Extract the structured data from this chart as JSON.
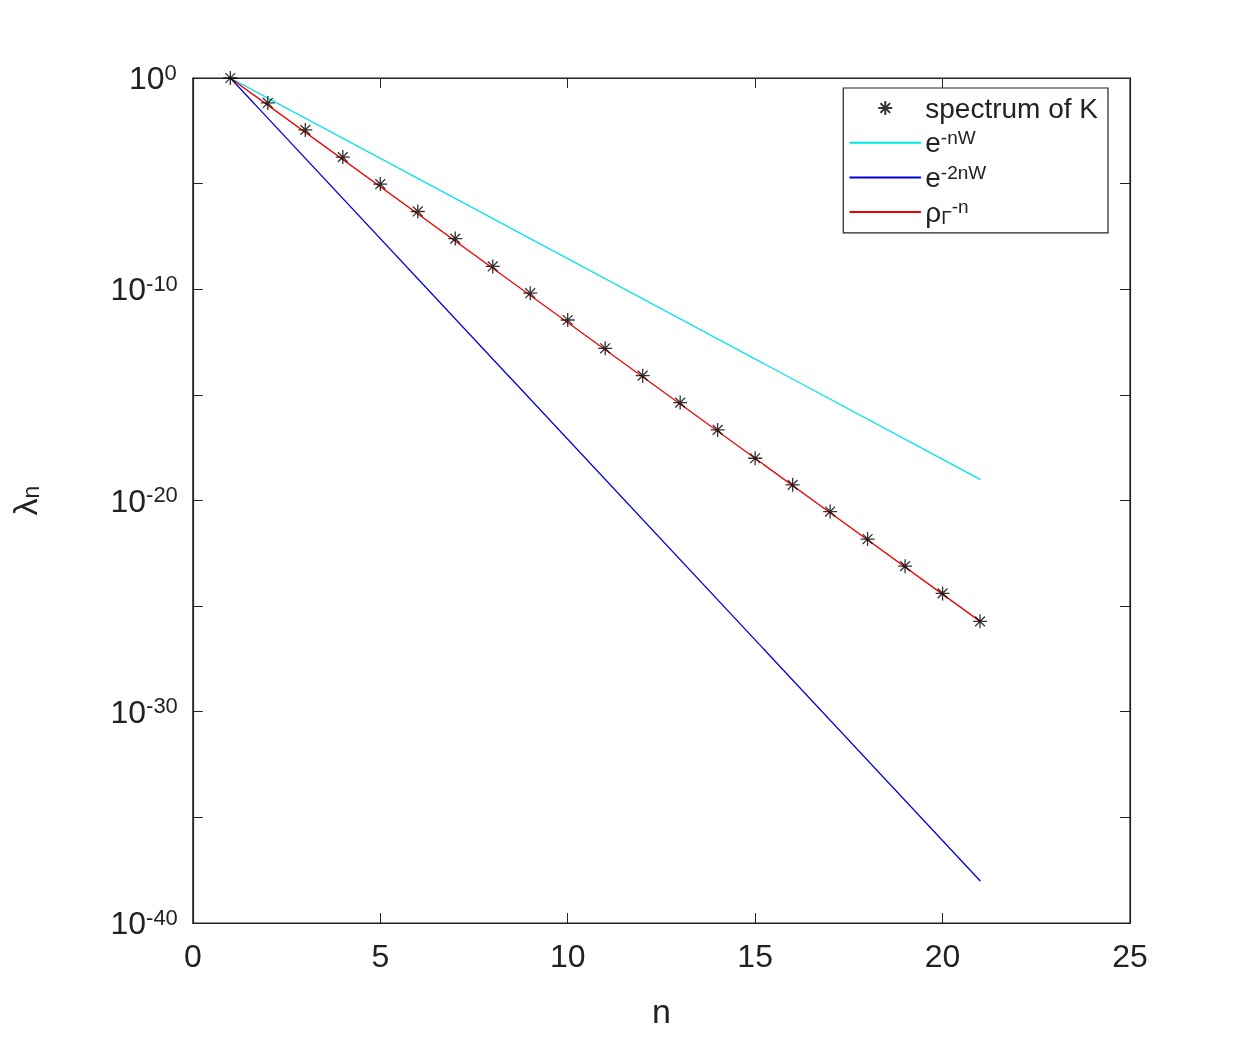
{
  "chart_data": {
    "type": "scatter",
    "xlabel": "n",
    "ylabel": "λ$_{n}$",
    "log": true,
    "grid": false,
    "legend": "top right",
    "xlim": [
      0,
      25
    ],
    "xticks": [
      0,
      5,
      10,
      15,
      20,
      25
    ],
    "ylim": [
      1e-40,
      1
    ],
    "yticks": [
      {
        "value": 1,
        "label": "10$^{0}$"
      },
      {
        "value": 1e-05,
        "label": null
      },
      {
        "value": 1e-10,
        "label": "10$^{-10}$"
      },
      {
        "value": 1e-15,
        "label": null
      },
      {
        "value": 1e-20,
        "label": "10$^{-20}$"
      },
      {
        "value": 1e-25,
        "label": null
      },
      {
        "value": 1e-30,
        "label": "10$^{-30}$"
      },
      {
        "value": 1e-35,
        "label": null
      },
      {
        "value": 1e-40,
        "label": "10$^{-40}$"
      }
    ],
    "series": [
      {
        "name": "spectrum of K",
        "color": "#000000",
        "marker": "cross",
        "x": [
          1,
          2,
          3,
          4,
          5,
          6,
          7,
          8,
          9,
          10,
          11,
          12,
          13,
          14,
          15,
          16,
          17,
          18,
          19,
          20,
          21
        ],
        "values": [
          1,
          0.066,
          0.0035,
          0.00018,
          9.5e-06,
          4.8e-07,
          2.5e-08,
          1.2e-09,
          6.5e-11,
          3.5e-12,
          1.6e-13,
          8.1e-15,
          4.3e-16,
          2.2e-17,
          1e-18,
          5.5e-20,
          3e-21,
          1.5e-22,
          7.8e-24,
          4e-25,
          1.9e-26
        ]
      },
      {
        "name": "e$^{-nW}$",
        "type": "line",
        "color": "#00e5e5",
        "marker": "none",
        "x": [
          1,
          21
        ],
        "values": [
          1,
          1e-19
        ]
      },
      {
        "name": "e$^{-2nW}$",
        "type": "line",
        "color": "#0000e0",
        "marker": "none",
        "x": [
          1,
          21
        ],
        "values": [
          1,
          1e-38
        ]
      },
      {
        "name": "ρ$_{Γ}$$^{-n}$",
        "type": "line",
        "color": "#ee0000",
        "marker": "none",
        "x": [
          1,
          21
        ],
        "values": [
          1,
          1.9e-26
        ]
      }
    ]
  }
}
